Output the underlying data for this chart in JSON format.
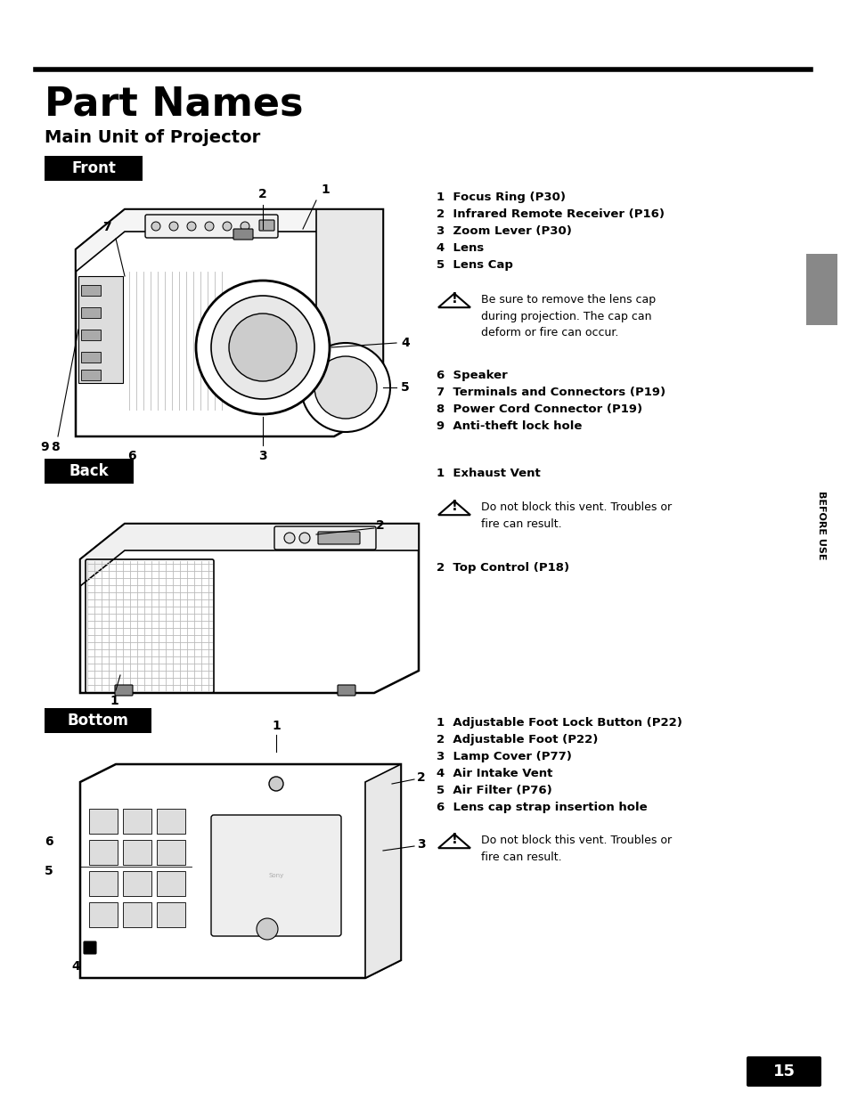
{
  "background_color": "#ffffff",
  "page_width": 9.54,
  "page_height": 12.35,
  "title": "Part Names",
  "subtitle": "Main Unit of Projector",
  "section_front_label": "Front",
  "section_back_label": "Back",
  "section_bottom_label": "Bottom",
  "front_items": [
    "1  Focus Ring (P30)",
    "2  Infrared Remote Receiver (P16)",
    "3  Zoom Lever (P30)",
    "4  Lens",
    "5  Lens Cap"
  ],
  "front_items2": [
    "6  Speaker",
    "7  Terminals and Connectors (P19)",
    "8  Power Cord Connector (P19)",
    "9  Anti-theft lock hole"
  ],
  "back_items": [
    "1  Exhaust Vent"
  ],
  "back_items2": [
    "2  Top Control (P18)"
  ],
  "bottom_items": [
    "1  Adjustable Foot Lock Button (P22)",
    "2  Adjustable Foot (P22)",
    "3  Lamp Cover (P77)",
    "4  Air Intake Vent",
    "5  Air Filter (P76)",
    "6  Lens cap strap insertion hole"
  ],
  "warn1_text": "Be sure to remove the lens cap\nduring projection. The cap can\ndeform or fire can occur.",
  "warn2_text": "Do not block this vent. Troubles or\nfire can result.",
  "warn3_text": "Do not block this vent. Troubles or\nfire can result.",
  "sidebar_text": "BEFORE USE",
  "page_num": "15",
  "gray_box_color": "#888888",
  "black_box_color": "#000000",
  "text_color": "#000000"
}
